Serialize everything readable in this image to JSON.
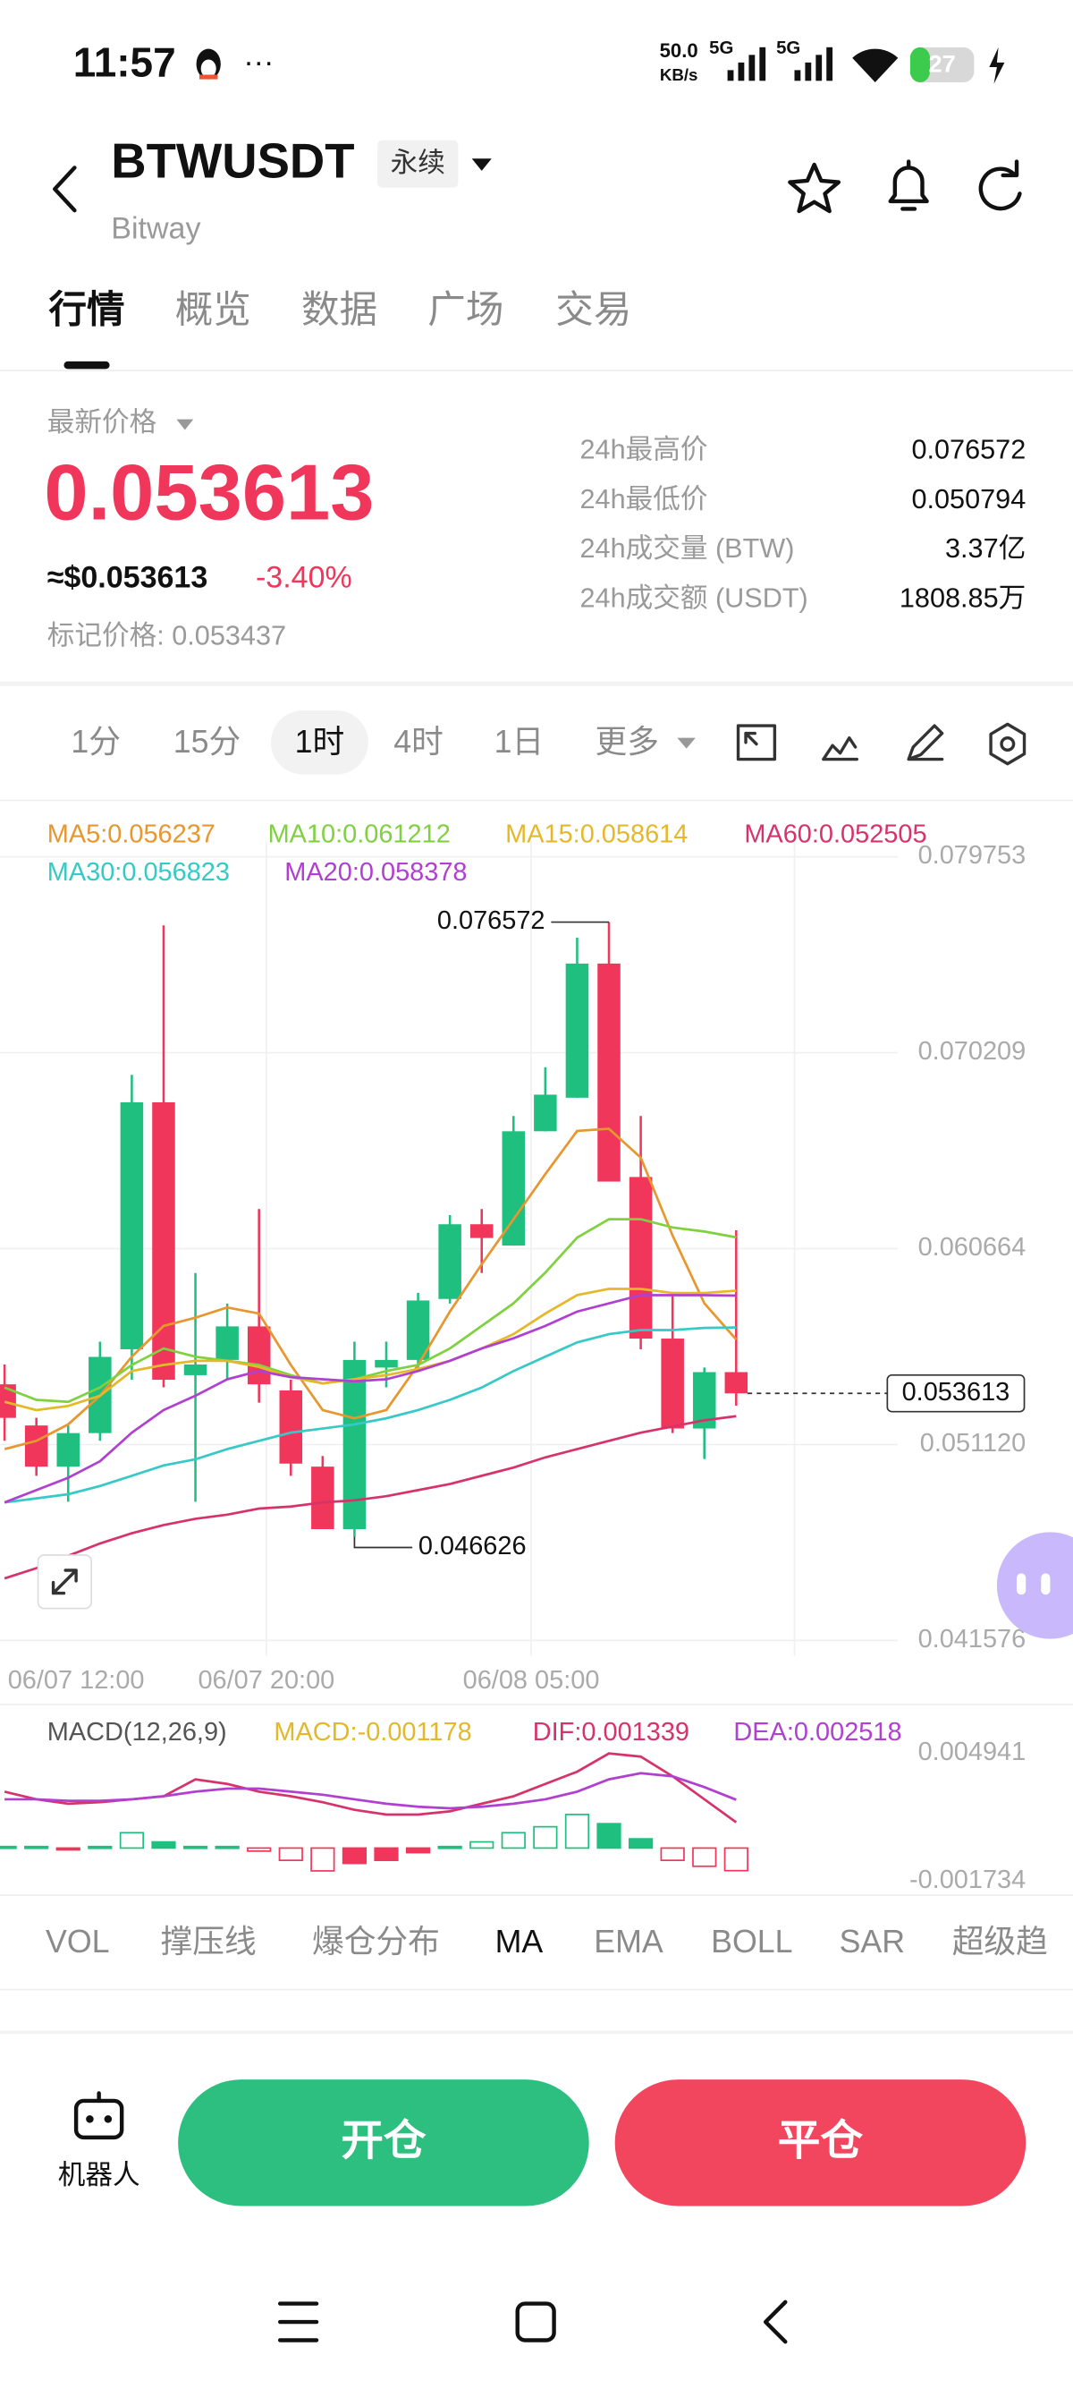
{
  "status_bar": {
    "time": "11:57",
    "speed": "50.0",
    "speed_unit": "KB/s",
    "network_1": "5G",
    "network_2": "5G",
    "battery": 27
  },
  "header": {
    "symbol": "BTWUSDT",
    "contract": "永续",
    "exchange": "Bitway"
  },
  "tabs": [
    "行情",
    "概览",
    "数据",
    "广场",
    "交易"
  ],
  "active_tab": 0,
  "price": {
    "label": "最新价格",
    "last": 0.053613,
    "usd": "≈$0.053613",
    "change": "-3.40%",
    "mark": "标记价格: 0.053437"
  },
  "stats": [
    {
      "label": "24h最高价",
      "value": 0.076572
    },
    {
      "label": "24h最低价",
      "value": 0.050794
    },
    {
      "label": "24h成交量 (BTW)",
      "value": "3.37亿"
    },
    {
      "label": "24h成交额 (USDT)",
      "value": "1808.85万"
    }
  ],
  "intervals": [
    "1分",
    "15分",
    "1时",
    "4时",
    "1日",
    "更多"
  ],
  "active_interval": 2,
  "chart_data": [
    {
      "type": "candlestick",
      "ylim": [
        0.041576,
        0.079753
      ],
      "yticks": [
        0.079753,
        0.070209,
        0.060664,
        {
          "value": 0.05112,
          "label": "0.051120"
        },
        0.041576
      ],
      "xticks": [
        "06/07 12:00",
        "06/07 20:00",
        "06/08 05:00"
      ],
      "up_color": "#1fbf7f",
      "down_color": "#f0365a",
      "candles": [
        {
          "open": 0.054053,
          "high": 0.055019,
          "low": 0.051305,
          "close": 0.052419
        },
        {
          "open": 0.052048,
          "high": 0.052419,
          "low": 0.049597,
          "close": 0.050043
        },
        {
          "open": 0.050043,
          "high": 0.052048,
          "low": 0.048335,
          "close": 0.051677
        },
        {
          "open": 0.051677,
          "high": 0.056133,
          "low": 0.051305,
          "close": 0.05539
        },
        {
          "open": 0.055762,
          "high": 0.06913,
          "low": 0.054276,
          "close": 0.067793
        },
        {
          "open": 0.067793,
          "high": 0.076409,
          "low": 0.053905,
          "close": 0.054276
        },
        {
          "open": 0.054499,
          "high": 0.059475,
          "low": 0.048335,
          "close": 0.055019
        },
        {
          "open": 0.055242,
          "high": 0.05799,
          "low": 0.054276,
          "close": 0.056876
        },
        {
          "open": 0.056876,
          "high": 0.062594,
          "low": 0.053162,
          "close": 0.054053
        },
        {
          "open": 0.053756,
          "high": 0.054276,
          "low": 0.049597,
          "close": 0.050191
        },
        {
          "open": 0.050043,
          "high": 0.050563,
          "low": 0.046998,
          "close": 0.046998
        },
        {
          "open": 0.046998,
          "high": 0.056133,
          "low": 0.046626,
          "close": 0.055242
        },
        {
          "open": 0.05487,
          "high": 0.056133,
          "low": 0.053905,
          "close": 0.055242
        },
        {
          "open": 0.055242,
          "high": 0.05851,
          "low": 0.05487,
          "close": 0.058138
        },
        {
          "open": 0.058212,
          "high": 0.062297,
          "low": 0.05799,
          "close": 0.061852
        },
        {
          "open": 0.061852,
          "high": 0.062594,
          "low": 0.059475,
          "close": 0.061183
        },
        {
          "open": 0.060812,
          "high": 0.067125,
          "low": 0.060812,
          "close": 0.066382
        },
        {
          "open": 0.066382,
          "high": 0.069502,
          "low": 0.066382,
          "close": 0.068165
        },
        {
          "open": 0.068016,
          "high": 0.075814,
          "low": 0.068016,
          "close": 0.074552
        },
        {
          "open": 0.074552,
          "high": 0.076572,
          "low": 0.063931,
          "close": 0.063931
        },
        {
          "open": 0.064154,
          "high": 0.067125,
          "low": 0.055762,
          "close": 0.056281
        },
        {
          "open": 0.056281,
          "high": 0.05851,
          "low": 0.051677,
          "close": 0.0519
        },
        {
          "open": 0.0519,
          "high": 0.05487,
          "low": 0.050414,
          "close": 0.054648
        },
        {
          "open": 0.054648,
          "high": 0.061555,
          "low": 0.053014,
          "close": 0.053613
        }
      ],
      "series": [
        {
          "label": "MA5:0.056237",
          "color": "#e8962e",
          "values": [
            0.0509,
            0.0513,
            0.0521,
            0.0535,
            0.0554,
            0.0569,
            0.0573,
            0.0578,
            0.0575,
            0.055,
            0.0528,
            0.0524,
            0.0528,
            0.055,
            0.0576,
            0.0599,
            0.0621,
            0.0643,
            0.0664,
            0.0665,
            0.0651,
            0.0613,
            0.058,
            0.056237
          ]
        },
        {
          "label": "MA10:0.061212",
          "color": "#7fd140",
          "values": [
            0.0539,
            0.0533,
            0.0532,
            0.0539,
            0.055,
            0.0558,
            0.0554,
            0.0552,
            0.055,
            0.0545,
            0.0541,
            0.0543,
            0.0547,
            0.055,
            0.0558,
            0.0569,
            0.058,
            0.0595,
            0.0612,
            0.0621,
            0.0621,
            0.0617,
            0.0615,
            0.061212
          ]
        },
        {
          "label": "MA15:0.058614",
          "color": "#e5b82a",
          "values": [
            0.0532,
            0.0528,
            0.053,
            0.0535,
            0.0547,
            0.055,
            0.0552,
            0.0552,
            0.0549,
            0.0544,
            0.0541,
            0.0543,
            0.0545,
            0.0548,
            0.0552,
            0.0558,
            0.0565,
            0.0575,
            0.0584,
            0.0587,
            0.0587,
            0.0585,
            0.0585,
            0.058614
          ]
        },
        {
          "label": "MA60:0.052505",
          "color": "#d6336c",
          "values": [
            0.0446,
            0.0451,
            0.0457,
            0.0463,
            0.0468,
            0.0472,
            0.0475,
            0.0477,
            0.048,
            0.0481,
            0.0483,
            0.0484,
            0.0486,
            0.0489,
            0.0492,
            0.0496,
            0.05,
            0.0505,
            0.0509,
            0.0513,
            0.0517,
            0.052,
            0.0523,
            0.052505
          ]
        },
        {
          "label": "MA30:0.056823",
          "color": "#36c9c6",
          "values": [
            0.0483,
            0.0485,
            0.0487,
            0.0491,
            0.0496,
            0.0501,
            0.0504,
            0.0509,
            0.0513,
            0.0517,
            0.0519,
            0.0521,
            0.0524,
            0.0528,
            0.0533,
            0.0539,
            0.0547,
            0.0554,
            0.0561,
            0.0565,
            0.0567,
            0.0567,
            0.0568,
            0.056823
          ]
        },
        {
          "label": "MA20:0.058378",
          "color": "#b040d0",
          "values": [
            0.0483,
            0.0489,
            0.0495,
            0.0503,
            0.0517,
            0.0528,
            0.0535,
            0.0543,
            0.0547,
            0.0544,
            0.0543,
            0.0542,
            0.0543,
            0.0547,
            0.0552,
            0.0558,
            0.0563,
            0.0569,
            0.0576,
            0.058,
            0.0584,
            0.0584,
            0.0584,
            0.058378
          ]
        }
      ]
    },
    {
      "type": "macd",
      "title": "MACD(12,26,9)",
      "ylim": [
        -0.001734,
        0.004941
      ],
      "yticks": [
        0.004941,
        -0.001734
      ],
      "up_color": "#1fbf7f",
      "down_color": "#f0365a",
      "series": [
        {
          "label": "MACD:-0.001178",
          "color": "#e5b82a",
          "values": [
            8e-05,
            8e-05,
            -8e-05,
            8e-05,
            0.0008,
            0.00032,
            8e-05,
            8e-05,
            -0.00016,
            -0.00064,
            -0.00119,
            -0.0008,
            -0.00064,
            -0.00024,
            8e-05,
            0.00032,
            0.0008,
            0.00111,
            0.00175,
            0.00127,
            0.00048,
            -0.00064,
            -0.00095,
            -0.001178
          ]
        },
        {
          "label": "DIF:0.001339",
          "color": "#d6336c",
          "values": [
            0.00294,
            0.00254,
            0.00231,
            0.00239,
            0.00254,
            0.0027,
            0.00358,
            0.00334,
            0.00294,
            0.0027,
            0.00239,
            0.00199,
            0.00175,
            0.00175,
            0.00191,
            0.00231,
            0.0027,
            0.00334,
            0.00398,
            0.00493,
            0.00477,
            0.00374,
            0.00254,
            0.001339
          ]
        },
        {
          "label": "DEA:0.002518",
          "color": "#b040d0",
          "values": [
            0.00254,
            0.00254,
            0.00246,
            0.00246,
            0.00254,
            0.0027,
            0.00294,
            0.0031,
            0.0031,
            0.00294,
            0.00278,
            0.00254,
            0.00231,
            0.00215,
            0.00207,
            0.00215,
            0.00231,
            0.00254,
            0.00294,
            0.00358,
            0.0039,
            0.00374,
            0.00318,
            0.002518
          ]
        }
      ]
    }
  ],
  "indicators": [
    "VOL",
    "撑压线",
    "爆仓分布",
    "MA",
    "EMA",
    "BOLL",
    "SAR",
    "超级趋"
  ],
  "active_indicator": 3,
  "actions": {
    "robot": "机器人",
    "open": "开仓",
    "close": "平仓"
  }
}
